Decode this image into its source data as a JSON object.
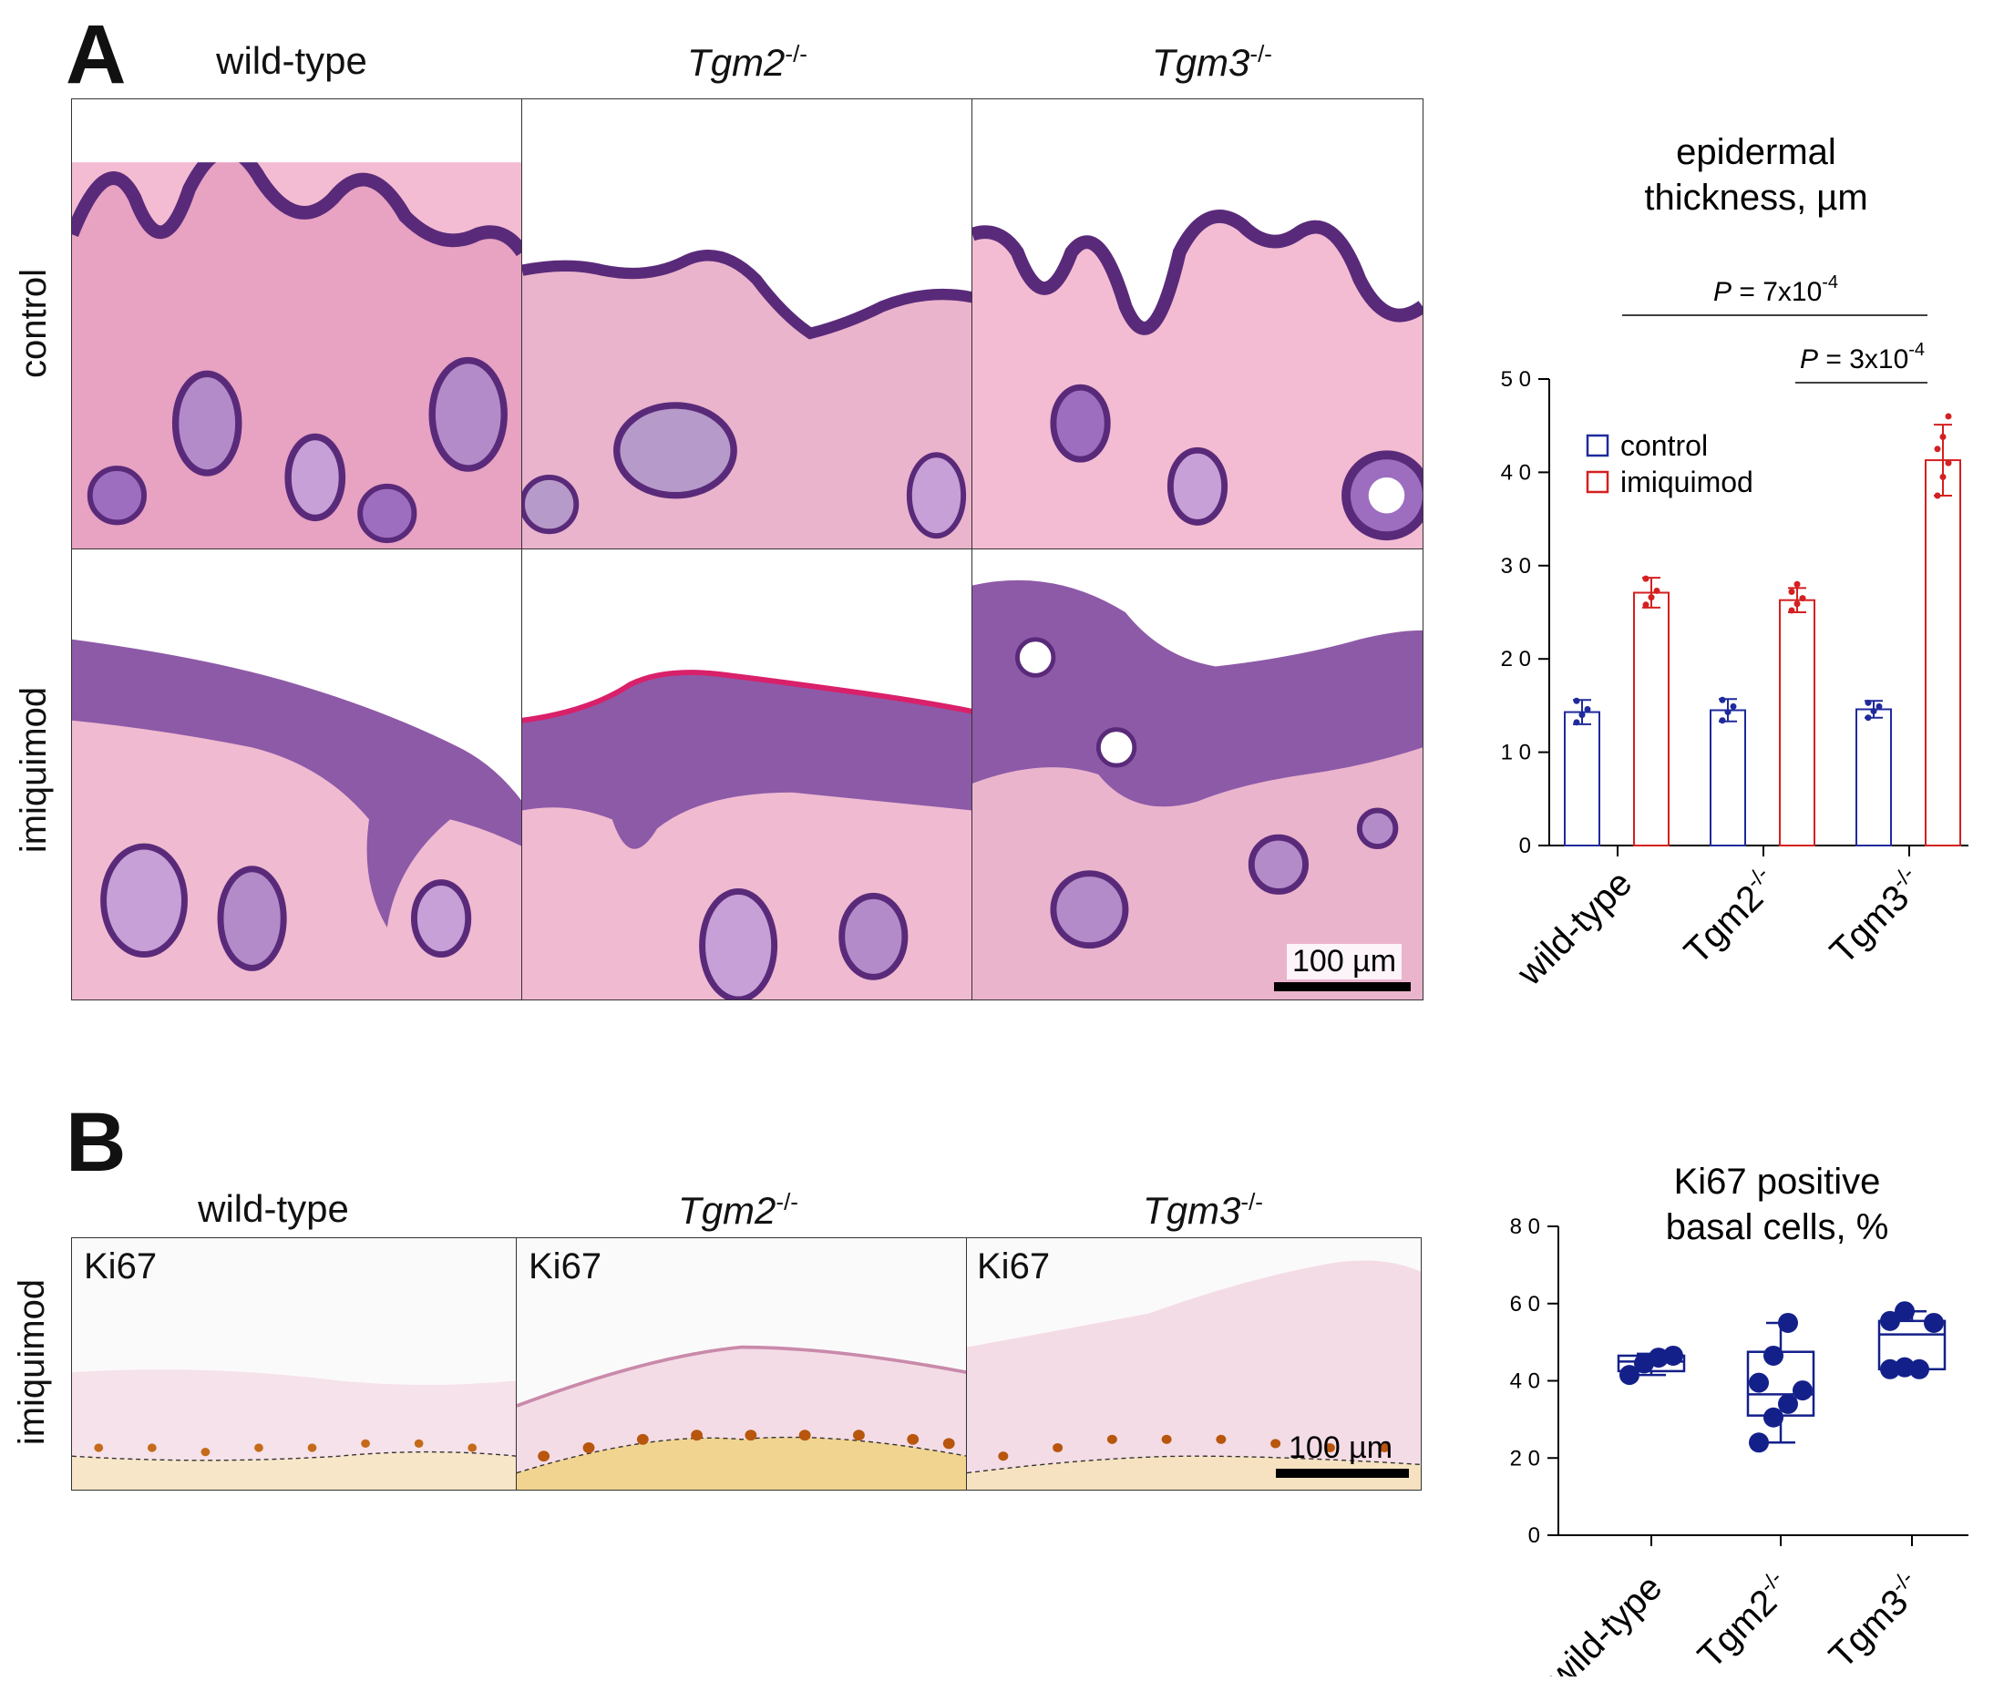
{
  "panelA": {
    "letter": "A",
    "columns": [
      {
        "text": "wild-type",
        "italic": false,
        "sup": ""
      },
      {
        "text": "Tgm2",
        "italic": true,
        "sup": "-/-"
      },
      {
        "text": "Tgm3",
        "italic": true,
        "sup": "-/-"
      }
    ],
    "rows": [
      "control",
      "imiquimod"
    ],
    "scalebar": "100 µm"
  },
  "panelB": {
    "letter": "B",
    "columns": [
      {
        "text": "wild-type",
        "italic": false,
        "sup": ""
      },
      {
        "text": "Tgm2",
        "italic": true,
        "sup": "-/-"
      },
      {
        "text": "Tgm3",
        "italic": true,
        "sup": "-/-"
      }
    ],
    "row": "imiquimod",
    "stain": "Ki67",
    "scalebar": "100 µm"
  },
  "chart_data": [
    {
      "type": "bar",
      "title_lines": [
        "epidermal",
        "thickness, µm"
      ],
      "categories": [
        "wild-type",
        "Tgm2",
        "Tgm3"
      ],
      "category_sup": [
        "",
        "-/-",
        "-/-"
      ],
      "ylim": [
        0,
        50
      ],
      "yticks": [
        0,
        10,
        20,
        30,
        40,
        50
      ],
      "legend": {
        "placement": "upper-left",
        "entries": [
          "control",
          "imiquimod"
        ]
      },
      "colors": {
        "control": "#1f2a9c",
        "imiquimod": "#d42020"
      },
      "series": [
        {
          "name": "control",
          "values": [
            14.3,
            14.5,
            14.6
          ],
          "err": [
            1.3,
            1.2,
            0.9
          ],
          "points": [
            [
              13.2,
              14.0,
              14.6,
              15.5
            ],
            [
              13.4,
              14.3,
              14.9,
              15.6
            ],
            [
              13.7,
              14.4,
              14.9,
              15.3
            ]
          ]
        },
        {
          "name": "imiquimod",
          "values": [
            27.1,
            26.3,
            41.3
          ],
          "err": [
            1.6,
            1.3,
            3.8
          ],
          "points": [
            [
              25.8,
              26.6,
              27.3,
              28.6
            ],
            [
              25.2,
              25.9,
              26.5,
              27.2,
              28.0
            ],
            [
              37.5,
              39.5,
              41.0,
              42.5,
              43.8,
              46.0
            ]
          ]
        }
      ],
      "annotations": [
        {
          "label": "P",
          "value": " = 7x10",
          "exp": "-4",
          "from": 1,
          "to": 2
        },
        {
          "label": "P",
          "value": " = 3x10",
          "exp": "-4",
          "from": 2,
          "to": 2
        }
      ]
    },
    {
      "type": "box",
      "title_lines": [
        "Ki67 positive",
        "basal cells, %"
      ],
      "categories": [
        "wild-type",
        "Tgm2",
        "Tgm3"
      ],
      "category_sup": [
        "",
        "-/-",
        "-/-"
      ],
      "ylim": [
        0,
        80
      ],
      "yticks": [
        0,
        20,
        40,
        60,
        80
      ],
      "color": "#14208a",
      "boxes": [
        {
          "min": 41.5,
          "q1": 42.5,
          "median": 45.0,
          "q3": 46.5,
          "max": 47.0
        },
        {
          "min": 24.0,
          "q1": 31.0,
          "median": 36.5,
          "q3": 47.5,
          "max": 55.0
        },
        {
          "min": 43.0,
          "q1": 43.0,
          "median": 52.0,
          "q3": 55.5,
          "max": 58.0
        }
      ],
      "points": [
        [
          41.5,
          44.5,
          46.0,
          46.5
        ],
        [
          24.0,
          30.5,
          34.0,
          37.5,
          39.5,
          46.5,
          55.0
        ],
        [
          43.0,
          43.5,
          43.0,
          55.0,
          55.5,
          58.0
        ]
      ]
    }
  ]
}
